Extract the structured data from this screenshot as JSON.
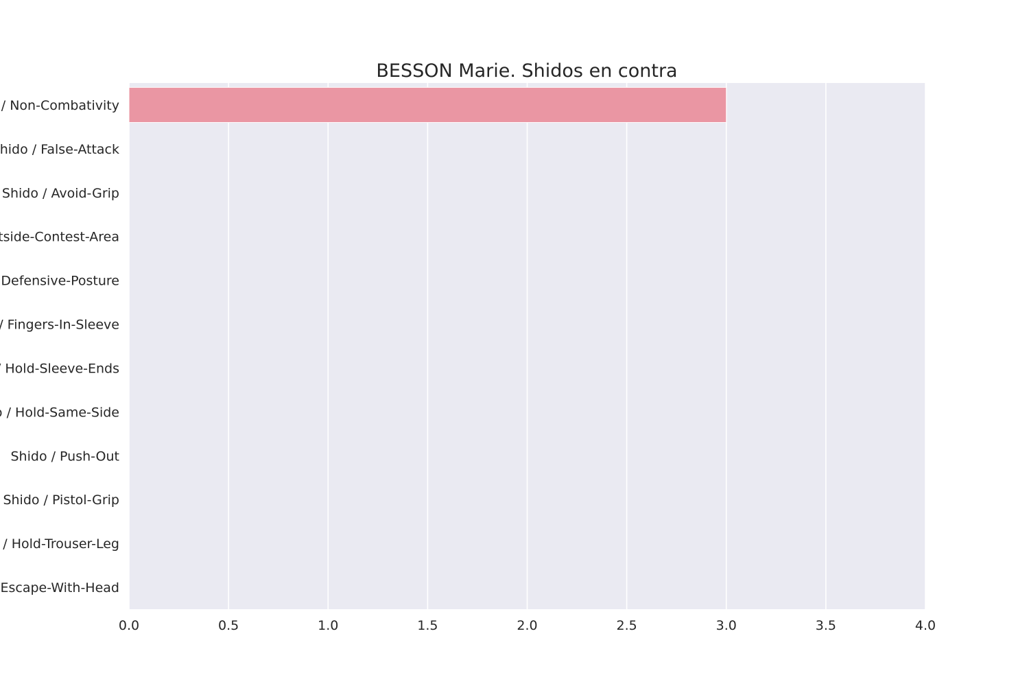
{
  "chart_data": {
    "type": "bar",
    "orientation": "horizontal",
    "title": "BESSON Marie. Shidos en contra",
    "xlabel": "",
    "ylabel": "",
    "categories": [
      "Shido / Non-Combativity",
      "Shido / False-Attack",
      "Shido / Avoid-Grip",
      "Shido / Outside-Contest-Area",
      "Shido / Defensive-Posture",
      "Shido / Fingers-In-Sleeve",
      "Shido / Hold-Sleeve-Ends",
      "Shido / Hold-Same-Side",
      "Shido / Push-Out",
      "Shido / Pistol-Grip",
      "Shido / Hold-Trouser-Leg",
      "Shido / Escape-With-Head"
    ],
    "values": [
      3,
      0,
      0,
      0,
      0,
      0,
      0,
      0,
      0,
      0,
      0,
      0
    ],
    "xlim": [
      0,
      4
    ],
    "xticks": [
      "0.0",
      "0.5",
      "1.0",
      "1.5",
      "2.0",
      "2.5",
      "3.0",
      "3.5",
      "4.0"
    ],
    "grid": true,
    "colors": {
      "bar": "#ea96a3",
      "plot_background": "#eaeaf2",
      "grid": "#ffffff",
      "text": "#262626"
    }
  }
}
